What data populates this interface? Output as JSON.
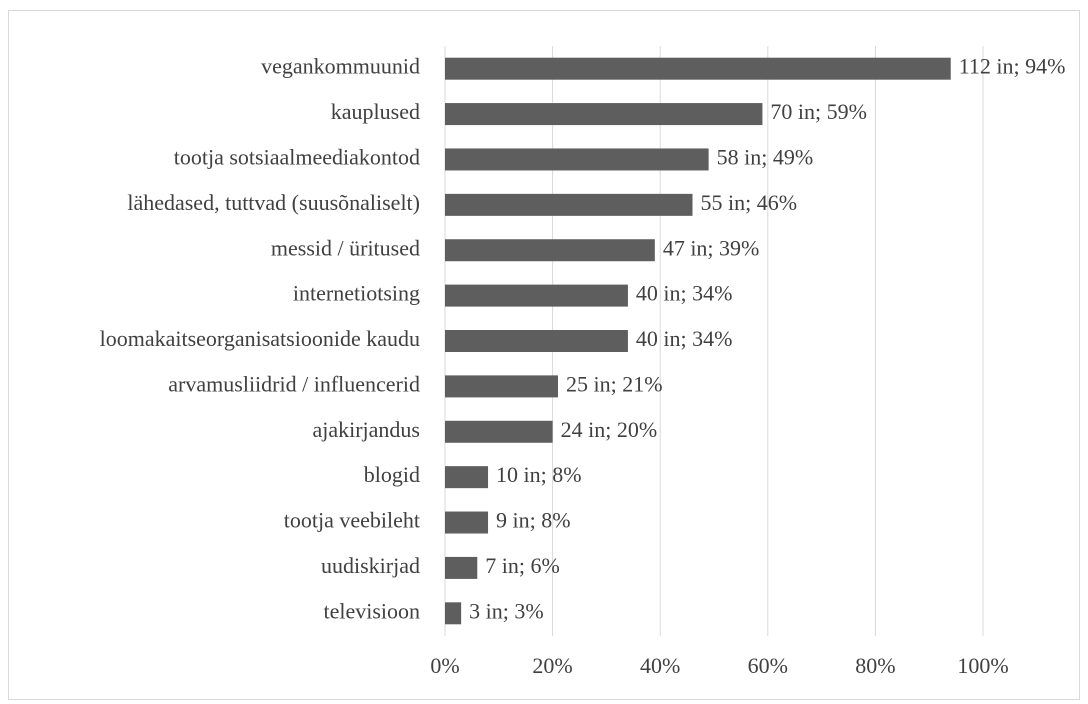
{
  "chart_data": {
    "type": "bar",
    "orientation": "horizontal",
    "categories": [
      "vegankommuunid",
      "kauplused",
      "tootja sotsiaalmeediakontod",
      "lähedased, tuttvad (suusõnaliselt)",
      "messid / üritused",
      "internetiotsing",
      "loomakaitseorganisatsioonide kaudu",
      "arvamusliidrid / influencerid",
      "ajakirjandus",
      "blogid",
      "tootja veebileht",
      "uudiskirjad",
      "televisioon"
    ],
    "values": [
      94,
      59,
      49,
      46,
      39,
      34,
      34,
      21,
      20,
      8,
      8,
      6,
      3
    ],
    "value_labels": [
      "112 in; 94%",
      "70 in; 59%",
      "58 in; 49%",
      "55 in; 46%",
      "47 in; 39%",
      "40 in; 34%",
      "40 in; 34%",
      "25 in; 21%",
      "24 in; 20%",
      "10 in; 8%",
      "9 in; 8%",
      "7 in; 6%",
      "3 in; 3%"
    ],
    "color": "#5e5e5e",
    "xlim": [
      0,
      100
    ],
    "xticks": [
      {
        "value": 0,
        "label": "0%"
      },
      {
        "value": 20,
        "label": "20%"
      },
      {
        "value": 40,
        "label": "40%"
      },
      {
        "value": 60,
        "label": "60%"
      },
      {
        "value": 80,
        "label": "80%"
      },
      {
        "value": 100,
        "label": "100%"
      }
    ],
    "grid": true
  }
}
